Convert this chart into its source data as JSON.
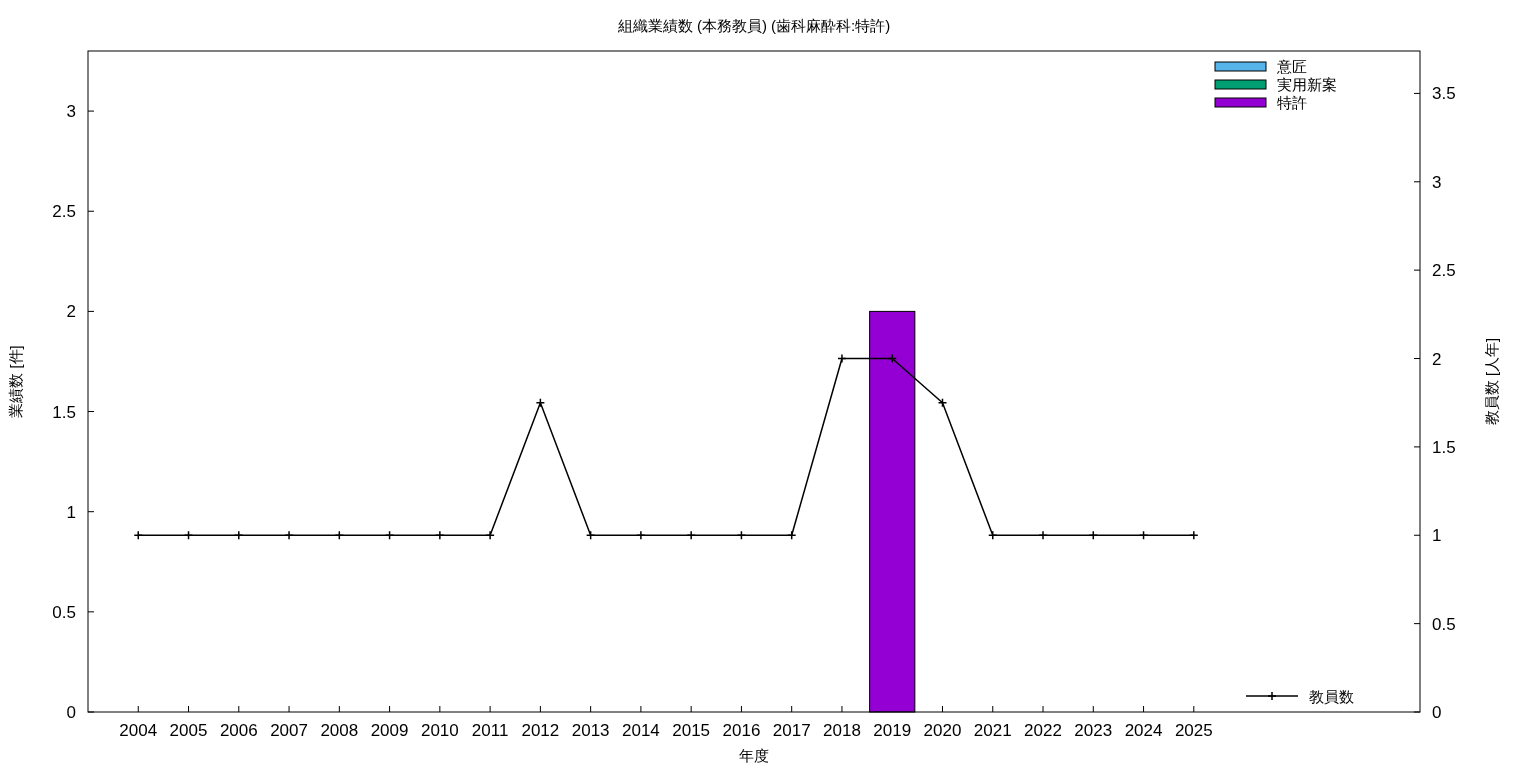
{
  "chart_data": {
    "type": "bar",
    "title": "組織業績数 (本務教員) (歯科麻酔科:特許)",
    "xlabel": "年度",
    "ylabel": "業績数 [件]",
    "y2label": "教員数 [人年]",
    "x": [
      2004,
      2005,
      2006,
      2007,
      2008,
      2009,
      2010,
      2011,
      2012,
      2013,
      2014,
      2015,
      2016,
      2017,
      2018,
      2019,
      2020,
      2021,
      2022,
      2023,
      2024,
      2025
    ],
    "xlim": [
      2003,
      2029.5
    ],
    "xticks": [
      2004,
      2005,
      2006,
      2007,
      2008,
      2009,
      2010,
      2011,
      2012,
      2013,
      2014,
      2015,
      2016,
      2017,
      2018,
      2019,
      2020,
      2021,
      2022,
      2023,
      2024,
      2025
    ],
    "ylim": [
      0,
      3.3
    ],
    "yticks": [
      0,
      0.5,
      1,
      1.5,
      2,
      2.5,
      3
    ],
    "y2lim": [
      0,
      3.74
    ],
    "y2ticks": [
      0,
      0.5,
      1,
      1.5,
      2,
      2.5,
      3,
      3.5
    ],
    "legend": "right",
    "grid": false,
    "marker": "cross",
    "line_style": "solid",
    "series": [
      {
        "name": "意匠",
        "color": "#56b4e9",
        "values": [
          0,
          0,
          0,
          0,
          0,
          0,
          0,
          0,
          0,
          0,
          0,
          0,
          0,
          0,
          0,
          0,
          0,
          0,
          0,
          0,
          0,
          0
        ]
      },
      {
        "name": "実用新案",
        "color": "#009e73",
        "values": [
          0,
          0,
          0,
          0,
          0,
          0,
          0,
          0,
          0,
          0,
          0,
          0,
          0,
          0,
          0,
          0,
          0,
          0,
          0,
          0,
          0,
          0
        ]
      },
      {
        "name": "特許",
        "color": "#9400d3",
        "values": [
          0,
          0,
          0,
          0,
          0,
          0,
          0,
          0,
          0,
          0,
          0,
          0,
          0,
          0,
          0,
          2,
          0,
          0,
          0,
          0,
          0,
          0
        ]
      },
      {
        "name": "教員数",
        "type": "line",
        "axis": "y2",
        "color": "#000000",
        "values": [
          1,
          1,
          1,
          1,
          1,
          1,
          1,
          1,
          1.75,
          1,
          1,
          1,
          1,
          1,
          2,
          2,
          1.75,
          1,
          1,
          1,
          1,
          1
        ]
      }
    ]
  }
}
